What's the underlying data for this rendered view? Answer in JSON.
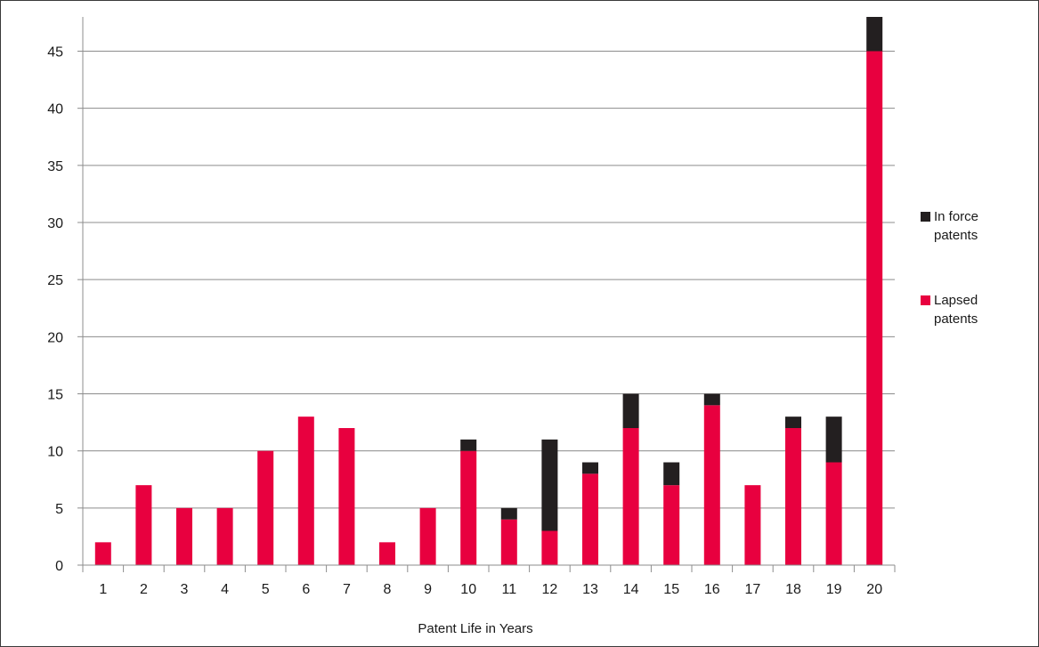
{
  "chart_data": {
    "type": "bar",
    "stacked": true,
    "categories": [
      "1",
      "2",
      "3",
      "4",
      "5",
      "6",
      "7",
      "8",
      "9",
      "10",
      "11",
      "12",
      "13",
      "14",
      "15",
      "16",
      "17",
      "18",
      "19",
      "20"
    ],
    "series": [
      {
        "name": "Lapsed patents",
        "color": "#e8003f",
        "values": [
          2,
          7,
          5,
          5,
          10,
          13,
          12,
          2,
          5,
          10,
          4,
          3,
          8,
          12,
          7,
          14,
          7,
          12,
          9,
          45
        ]
      },
      {
        "name": "In force patents",
        "color": "#231f20",
        "values": [
          0,
          0,
          0,
          0,
          0,
          0,
          0,
          0,
          0,
          1,
          1,
          8,
          1,
          3,
          2,
          1,
          0,
          1,
          4,
          3
        ]
      }
    ],
    "title": "",
    "xlabel": "Patent Life in Years",
    "ylabel": "",
    "ylim": [
      0,
      48
    ],
    "yticks": [
      "0",
      "5",
      "10",
      "15",
      "20",
      "25",
      "30",
      "35",
      "40",
      "45"
    ],
    "grid": true,
    "legend": {
      "position": "right",
      "entries": [
        {
          "line1": "In force",
          "line2": "patents",
          "color": "#231f20"
        },
        {
          "line1": "Lapsed",
          "line2": "patents",
          "color": "#e8003f"
        }
      ]
    }
  }
}
